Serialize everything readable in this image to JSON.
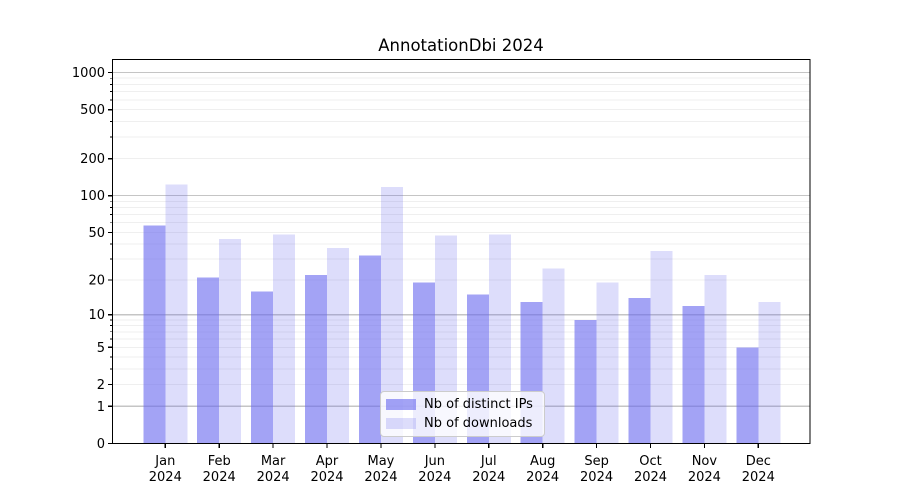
{
  "chart_data": {
    "type": "bar",
    "title": "AnnotationDbi 2024",
    "year_label": "2024",
    "categories": [
      "Jan",
      "Feb",
      "Mar",
      "Apr",
      "May",
      "Jun",
      "Jul",
      "Aug",
      "Sep",
      "Oct",
      "Nov",
      "Dec"
    ],
    "series": [
      {
        "name": "Nb of distinct IPs",
        "color_hex": "#6666ee",
        "opacity": 0.6,
        "values": [
          57,
          21,
          16,
          22,
          32,
          19,
          15,
          13,
          9,
          14,
          12,
          5
        ]
      },
      {
        "name": "Nb of downloads",
        "color_hex": "#6666ee",
        "opacity": 0.22,
        "values": [
          123,
          44,
          48,
          37,
          118,
          47,
          48,
          25,
          19,
          35,
          22,
          13
        ]
      }
    ],
    "xlabel": "",
    "ylabel": "",
    "yscale": "log1p",
    "yticks": [
      1000,
      500,
      200,
      100,
      50,
      20,
      10,
      5,
      2,
      1,
      0
    ],
    "ylim": [
      0,
      1275
    ],
    "grid": true,
    "legend_position": "lower center",
    "colors": {
      "bar_base": "#6666ee",
      "grid_major": "#c5c5c5",
      "grid_minor": "#efefef",
      "axis": "#000000",
      "background": "#ffffff"
    }
  }
}
